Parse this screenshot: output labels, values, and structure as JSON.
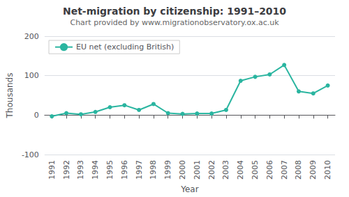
{
  "chart_data": {
    "type": "line",
    "title": "Net-migration by citizenship: 1991–2010",
    "subtitle": "Chart provided by www.migrationobservatory.ox.ac.uk",
    "xlabel": "Year",
    "ylabel": "Thousands",
    "categories": [
      "1991",
      "1992",
      "1993",
      "1994",
      "1995",
      "1996",
      "1997",
      "1998",
      "1999",
      "2000",
      "2001",
      "2002",
      "2003",
      "2004",
      "2005",
      "2006",
      "2007",
      "2008",
      "2009",
      "2010"
    ],
    "series": [
      {
        "name": "EU net (excluding British)",
        "color": "#2ab5a0",
        "marker": "circle",
        "values": [
          -3,
          5,
          2,
          8,
          20,
          25,
          13,
          28,
          5,
          3,
          4,
          4,
          13,
          87,
          97,
          103,
          127,
          60,
          55,
          75
        ]
      }
    ],
    "ylim": [
      -100,
      200
    ],
    "yticks": [
      -100,
      0,
      100,
      200
    ],
    "grid": true,
    "legend": "upper left"
  }
}
